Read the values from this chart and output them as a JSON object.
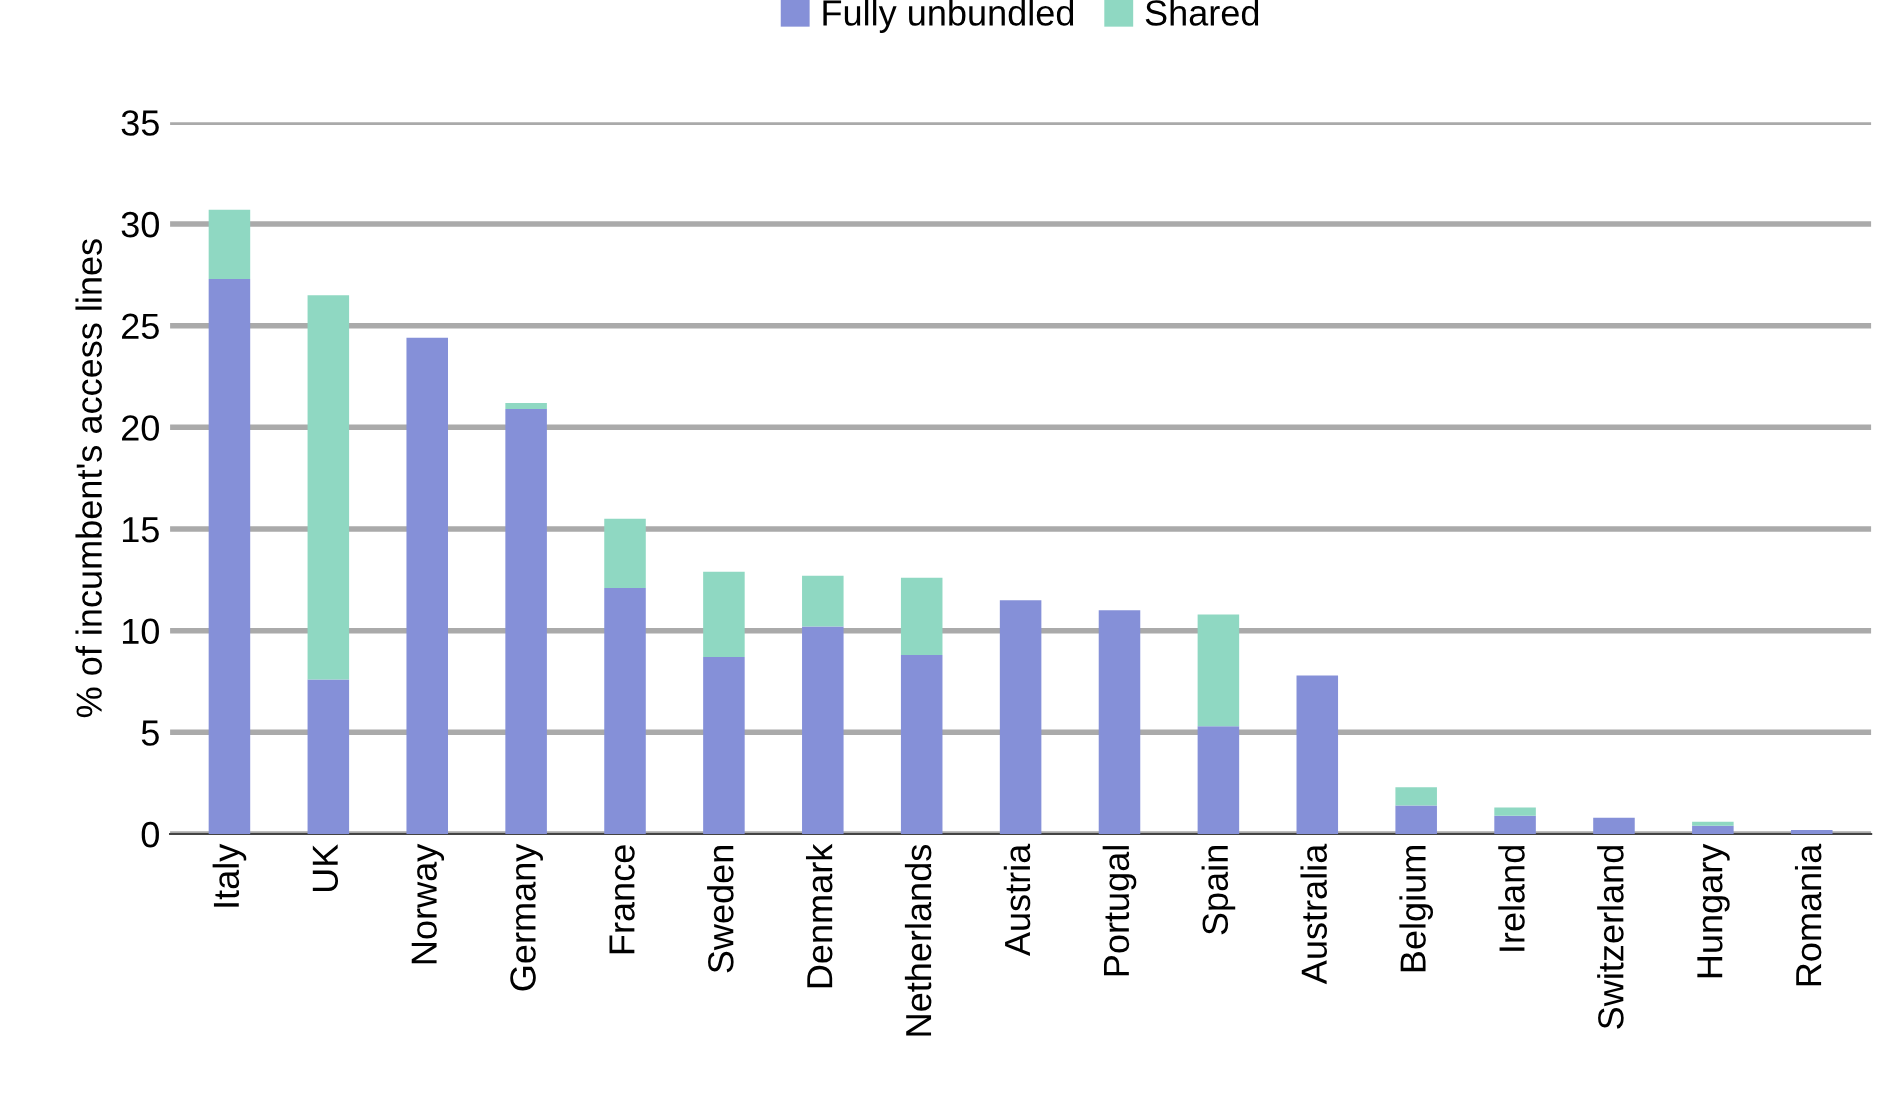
{
  "chart_data": {
    "type": "bar",
    "stacked": true,
    "ylabel": "% of incumbent's access lines",
    "categories": [
      "Italy",
      "UK",
      "Norway",
      "Germany",
      "France",
      "Sweden",
      "Denmark",
      "Netherlands",
      "Austria",
      "Portugal",
      "Spain",
      "Australia",
      "Belgium",
      "Ireland",
      "Switzerland",
      "Hungary",
      "Romania"
    ],
    "series": [
      {
        "name": "Fully unbundled",
        "color": "#8590d8",
        "values": [
          27.3,
          7.6,
          24.4,
          20.9,
          12.1,
          8.7,
          10.2,
          8.8,
          11.5,
          11.0,
          5.3,
          7.8,
          1.4,
          0.9,
          0.8,
          0.4,
          0.2
        ]
      },
      {
        "name": "Shared",
        "color": "#8fd8c2",
        "values": [
          3.4,
          18.9,
          0,
          0.3,
          3.4,
          4.2,
          2.5,
          3.8,
          0,
          0,
          5.5,
          0,
          0.9,
          0.4,
          0,
          0.2,
          0
        ]
      }
    ],
    "ylim": [
      0,
      35
    ],
    "yticks": [
      0,
      5,
      10,
      15,
      20,
      25,
      30,
      35
    ],
    "grid": "y",
    "legend": "top"
  }
}
